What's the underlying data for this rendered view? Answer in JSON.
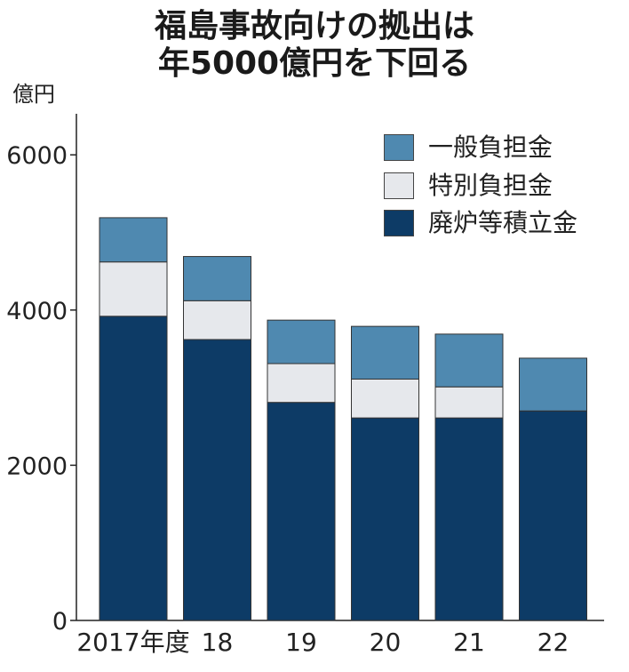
{
  "title_lines": [
    "福島事故向けの拠出は",
    "年5000億円を下回る"
  ],
  "chart_data": {
    "type": "bar",
    "stacked": true,
    "title": "福島事故向けの拠出は年5000億円を下回る",
    "ylabel": "億円",
    "xlabel": "",
    "categories": [
      "2017年度",
      "18",
      "19",
      "20",
      "21",
      "22"
    ],
    "ylim": [
      0,
      6500
    ],
    "yticks": [
      0,
      2000,
      4000,
      6000
    ],
    "series": [
      {
        "name": "廃炉等積立金",
        "color": "#0d3b66",
        "values": [
          3920,
          3620,
          2810,
          2610,
          2610,
          2700
        ]
      },
      {
        "name": "特別負担金",
        "color": "#e6e8ec",
        "values": [
          700,
          500,
          500,
          500,
          400,
          0
        ]
      },
      {
        "name": "一般負担金",
        "color": "#4f89b0",
        "values": [
          570,
          570,
          560,
          680,
          680,
          680
        ]
      }
    ],
    "legend_order": [
      "一般負担金",
      "特別負担金",
      "廃炉等積立金"
    ],
    "legend_position": "top-right",
    "grid": false
  }
}
